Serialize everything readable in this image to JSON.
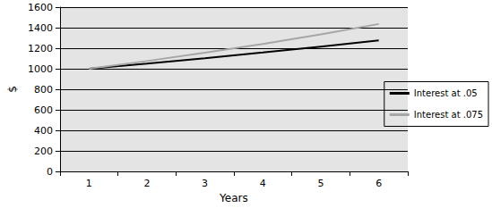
{
  "chart_data": {
    "type": "line",
    "x_label": "Years",
    "y_label": "$",
    "categories": [
      "1",
      "2",
      "3",
      "4",
      "5",
      "6"
    ],
    "series": [
      {
        "name": "Interest at .05",
        "color": "#000000",
        "values": [
          1000,
          1050,
          1103,
          1158,
          1216,
          1276
        ]
      },
      {
        "name": "Interest at .075",
        "color": "#a6a6a6",
        "values": [
          1000,
          1075,
          1156,
          1242,
          1335,
          1436
        ]
      }
    ],
    "ylim": [
      0,
      1600
    ],
    "yticks": [
      0,
      200,
      400,
      600,
      800,
      1000,
      1200,
      1400,
      1600
    ],
    "grid": true,
    "legend": "right"
  }
}
